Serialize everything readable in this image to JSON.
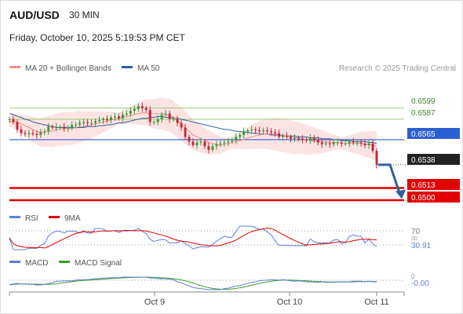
{
  "header": {
    "symbol": "AUD/USD",
    "timeframe": "30 MIN",
    "datetime": "Friday, October 10, 2025 5:19:53 PM CET"
  },
  "legend": {
    "bollinger": "MA 20 + Bollinger Bands",
    "ma50": "MA 50",
    "credit": "Research © 2025 Trading Central"
  },
  "colors": {
    "bollinger": "#f08c8c",
    "ma50": "#2f5f9e",
    "resistance": "#9ccc7a",
    "pivot": "#2c5fd1",
    "support": "#e00000",
    "price": "#222222",
    "rsi": "#5b7fd6",
    "rsi_ma": "#e00000",
    "macd": "#5b7fd6",
    "macd_signal": "#3f9a2e",
    "candle_up": "#3a9a3a",
    "candle_down": "#c0283a",
    "arrow": "#2f5f9e"
  },
  "levels": {
    "resistance": [
      "0.6599",
      "0.6587"
    ],
    "pivot": "0.6565",
    "last_price": "0.6538",
    "support": [
      "0.6513",
      "0.6500"
    ]
  },
  "rsi": {
    "label": "RSI",
    "ma_label": "9MA",
    "level_70": "70",
    "level_30": "30",
    "value": "30.91"
  },
  "macd": {
    "label": "MACD",
    "signal_label": "MACD Signal",
    "zero": "0",
    "value": "-0.00"
  },
  "x_axis": {
    "labels": [
      "Oct 9",
      "Oct 10",
      "Oct 11"
    ]
  },
  "chart_data": {
    "type": "line",
    "x": [
      0,
      10,
      20,
      30,
      40,
      50,
      60,
      70,
      80,
      90,
      100,
      110,
      120,
      130,
      140,
      150,
      160,
      170,
      180,
      190,
      200,
      210,
      220,
      230,
      240,
      250,
      260,
      270,
      280,
      290,
      300,
      310,
      320,
      330,
      340,
      350,
      360,
      370,
      380,
      390,
      400,
      410,
      420,
      430,
      440,
      450,
      460,
      470,
      480,
      490,
      500,
      510,
      520,
      530,
      540,
      550,
      560,
      570,
      580,
      590,
      600,
      610,
      620,
      630,
      640,
      650,
      660,
      670,
      680,
      690,
      700,
      710,
      720,
      730,
      740,
      750,
      760,
      770,
      780,
      790,
      800,
      810,
      820,
      830,
      840,
      850,
      860,
      870,
      880,
      890,
      900,
      910,
      920,
      930,
      940
    ],
    "ylim": [
      0.6489,
      0.6624
    ],
    "series": [
      {
        "name": "Close",
        "values": [
          0.6587,
          0.6584,
          0.6576,
          0.6572,
          0.6571,
          0.6572,
          0.6571,
          0.657,
          0.6573,
          0.6574,
          0.6579,
          0.6578,
          0.6579,
          0.6579,
          0.6577,
          0.6578,
          0.6581,
          0.6581,
          0.6583,
          0.6584,
          0.6583,
          0.6583,
          0.6585,
          0.6586,
          0.6587,
          0.6586,
          0.6589,
          0.659,
          0.6588,
          0.6592,
          0.6593,
          0.6596,
          0.6598,
          0.6601,
          0.6599,
          0.6597,
          0.6584,
          0.6584,
          0.6587,
          0.6592,
          0.6593,
          0.6587,
          0.6587,
          0.6583,
          0.6578,
          0.6568,
          0.6563,
          0.6559,
          0.6562,
          0.6563,
          0.6558,
          0.6554,
          0.6558,
          0.656,
          0.6561,
          0.6562,
          0.6563,
          0.6564,
          0.6568,
          0.657,
          0.6574,
          0.6575,
          0.6576,
          0.6575,
          0.6574,
          0.6575,
          0.6574,
          0.6573,
          0.6572,
          0.6568,
          0.6569,
          0.6568,
          0.6566,
          0.6567,
          0.6566,
          0.6565,
          0.6564,
          0.6567,
          0.6565,
          0.6562,
          0.656,
          0.6561,
          0.656,
          0.6562,
          0.6562,
          0.6561,
          0.6561,
          0.6563,
          0.6562,
          0.6562,
          0.6561,
          0.6559,
          0.6561,
          0.6553,
          0.6538
        ]
      },
      {
        "name": "MA 20",
        "values": [
          0.6584,
          0.6585,
          0.6584,
          0.6582,
          0.658,
          0.6578,
          0.6576,
          0.6574,
          0.6573,
          0.6573,
          0.6574,
          0.6574,
          0.6576,
          0.6576,
          0.6577,
          0.6577,
          0.6577,
          0.6578,
          0.6579,
          0.6579,
          0.658,
          0.6581,
          0.6582,
          0.6583,
          0.6584,
          0.6585,
          0.6586,
          0.6587,
          0.6588,
          0.6589,
          0.659,
          0.6591,
          0.6592,
          0.6593,
          0.6594,
          0.6594,
          0.6593,
          0.6593,
          0.6593,
          0.6593,
          0.6592,
          0.6591,
          0.6589,
          0.6585,
          0.6582,
          0.6578,
          0.6574,
          0.657,
          0.6568,
          0.6566,
          0.6564,
          0.6562,
          0.6561,
          0.656,
          0.6559,
          0.656,
          0.6561,
          0.6562,
          0.6563,
          0.6564,
          0.6565,
          0.6567,
          0.6568,
          0.6569,
          0.657,
          0.6571,
          0.6571,
          0.6571,
          0.6571,
          0.657,
          0.657,
          0.6569,
          0.6568,
          0.6567,
          0.6567,
          0.6566,
          0.6565,
          0.6564,
          0.6564,
          0.6563,
          0.6563,
          0.6562,
          0.6562,
          0.6562,
          0.6562,
          0.6561,
          0.6561,
          0.6561,
          0.6561,
          0.6561,
          0.6561,
          0.656,
          0.656,
          0.6559,
          0.6558
        ]
      },
      {
        "name": "MA 50",
        "values": [
          0.6593,
          0.6592,
          0.659,
          0.6589,
          0.6587,
          0.6586,
          0.6584,
          0.6583,
          0.6582,
          0.6581,
          0.658,
          0.6579,
          0.6578,
          0.6578,
          0.6578,
          0.6578,
          0.6578,
          0.6578,
          0.6578,
          0.6578,
          0.6579,
          0.6579,
          0.6579,
          0.658,
          0.658,
          0.6581,
          0.6581,
          0.6582,
          0.6583,
          0.6583,
          0.6584,
          0.6585,
          0.6586,
          0.6587,
          0.6588,
          0.6588,
          0.6589,
          0.6589,
          0.659,
          0.659,
          0.6589,
          0.6589,
          0.6588,
          0.6588,
          0.6587,
          0.6586,
          0.6585,
          0.6584,
          0.6583,
          0.6582,
          0.6581,
          0.658,
          0.6579,
          0.6578,
          0.6577,
          0.6576,
          0.6576,
          0.6575,
          0.6574,
          0.6574,
          0.6573,
          0.6573,
          0.6572,
          0.6572,
          0.6571,
          0.6571,
          0.6571,
          0.657,
          0.657,
          0.657,
          0.6569,
          0.6569,
          0.6569,
          0.6569,
          0.6568,
          0.6568,
          0.6568,
          0.6567,
          0.6567,
          0.6567,
          0.6566,
          0.6566,
          0.6566,
          0.6565,
          0.6565,
          0.6564,
          0.6564,
          0.6564,
          0.6563,
          0.6563,
          0.6563,
          0.6563,
          0.6562,
          0.6562,
          0.6561
        ]
      }
    ]
  }
}
